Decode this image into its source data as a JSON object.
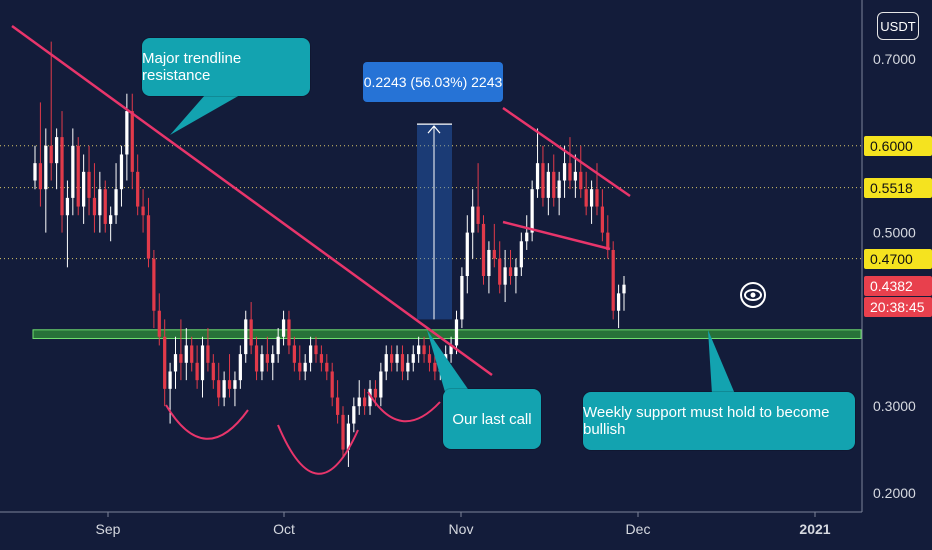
{
  "chart_data": {
    "type": "candlestick",
    "currency": "USDT",
    "y_ticks": [
      "0.7000",
      "0.5000",
      "0.3000",
      "0.2000"
    ],
    "x_ticks": [
      "Sep",
      "Oct",
      "Nov",
      "Dec",
      "2021"
    ],
    "ylim": [
      0.18,
      0.75
    ],
    "price_labels": [
      {
        "text": "0.6000",
        "value": 0.6,
        "style": "yellow"
      },
      {
        "text": "0.5518",
        "value": 0.5518,
        "style": "yellow"
      },
      {
        "text": "0.4700",
        "value": 0.47,
        "style": "yellow"
      },
      {
        "text": "0.4382",
        "value": 0.4382,
        "style": "red"
      }
    ],
    "countdown": "20:38:45",
    "support_zone": [
      0.378,
      0.388
    ],
    "measure": {
      "label": "0.2243 (56.03%) 2243",
      "from": 0.4,
      "to": 0.625
    },
    "annotations": {
      "resistance_label": "Major trendline resistance",
      "last_call_label": "Our last call",
      "support_label": "Weekly support must hold to become bullish"
    },
    "candles": [
      [
        0.56,
        0.6,
        0.55,
        0.58
      ],
      [
        0.58,
        0.65,
        0.53,
        0.55
      ],
      [
        0.55,
        0.62,
        0.5,
        0.6
      ],
      [
        0.6,
        0.72,
        0.56,
        0.58
      ],
      [
        0.58,
        0.62,
        0.55,
        0.61
      ],
      [
        0.61,
        0.64,
        0.5,
        0.52
      ],
      [
        0.52,
        0.56,
        0.46,
        0.54
      ],
      [
        0.54,
        0.62,
        0.52,
        0.6
      ],
      [
        0.6,
        0.61,
        0.52,
        0.53
      ],
      [
        0.53,
        0.59,
        0.51,
        0.57
      ],
      [
        0.57,
        0.6,
        0.52,
        0.54
      ],
      [
        0.54,
        0.58,
        0.5,
        0.52
      ],
      [
        0.52,
        0.57,
        0.5,
        0.55
      ],
      [
        0.55,
        0.56,
        0.5,
        0.51
      ],
      [
        0.51,
        0.53,
        0.49,
        0.52
      ],
      [
        0.52,
        0.58,
        0.51,
        0.55
      ],
      [
        0.55,
        0.6,
        0.53,
        0.59
      ],
      [
        0.59,
        0.66,
        0.56,
        0.64
      ],
      [
        0.64,
        0.66,
        0.55,
        0.57
      ],
      [
        0.57,
        0.59,
        0.52,
        0.53
      ],
      [
        0.53,
        0.55,
        0.5,
        0.52
      ],
      [
        0.52,
        0.54,
        0.46,
        0.47
      ],
      [
        0.47,
        0.48,
        0.39,
        0.41
      ],
      [
        0.41,
        0.43,
        0.37,
        0.38
      ],
      [
        0.38,
        0.4,
        0.3,
        0.32
      ],
      [
        0.32,
        0.35,
        0.28,
        0.34
      ],
      [
        0.34,
        0.38,
        0.32,
        0.36
      ],
      [
        0.36,
        0.4,
        0.33,
        0.35
      ],
      [
        0.35,
        0.39,
        0.33,
        0.37
      ],
      [
        0.37,
        0.38,
        0.34,
        0.35
      ],
      [
        0.35,
        0.37,
        0.32,
        0.33
      ],
      [
        0.33,
        0.38,
        0.31,
        0.37
      ],
      [
        0.37,
        0.39,
        0.34,
        0.35
      ],
      [
        0.35,
        0.36,
        0.32,
        0.33
      ],
      [
        0.33,
        0.35,
        0.3,
        0.31
      ],
      [
        0.31,
        0.34,
        0.3,
        0.33
      ],
      [
        0.33,
        0.36,
        0.31,
        0.32
      ],
      [
        0.32,
        0.34,
        0.3,
        0.33
      ],
      [
        0.33,
        0.37,
        0.32,
        0.36
      ],
      [
        0.36,
        0.41,
        0.35,
        0.4
      ],
      [
        0.4,
        0.42,
        0.36,
        0.37
      ],
      [
        0.37,
        0.38,
        0.33,
        0.34
      ],
      [
        0.34,
        0.37,
        0.33,
        0.36
      ],
      [
        0.36,
        0.38,
        0.34,
        0.35
      ],
      [
        0.35,
        0.37,
        0.33,
        0.36
      ],
      [
        0.36,
        0.39,
        0.35,
        0.38
      ],
      [
        0.38,
        0.41,
        0.37,
        0.4
      ],
      [
        0.4,
        0.41,
        0.36,
        0.37
      ],
      [
        0.37,
        0.38,
        0.34,
        0.35
      ],
      [
        0.35,
        0.37,
        0.33,
        0.34
      ],
      [
        0.34,
        0.36,
        0.33,
        0.35
      ],
      [
        0.35,
        0.38,
        0.34,
        0.37
      ],
      [
        0.37,
        0.38,
        0.35,
        0.36
      ],
      [
        0.36,
        0.37,
        0.34,
        0.35
      ],
      [
        0.35,
        0.36,
        0.33,
        0.34
      ],
      [
        0.34,
        0.35,
        0.3,
        0.31
      ],
      [
        0.31,
        0.33,
        0.28,
        0.29
      ],
      [
        0.29,
        0.3,
        0.24,
        0.25
      ],
      [
        0.25,
        0.29,
        0.23,
        0.28
      ],
      [
        0.28,
        0.31,
        0.27,
        0.3
      ],
      [
        0.3,
        0.33,
        0.29,
        0.31
      ],
      [
        0.31,
        0.32,
        0.29,
        0.3
      ],
      [
        0.3,
        0.33,
        0.29,
        0.32
      ],
      [
        0.32,
        0.33,
        0.3,
        0.31
      ],
      [
        0.31,
        0.35,
        0.3,
        0.34
      ],
      [
        0.34,
        0.37,
        0.33,
        0.36
      ],
      [
        0.36,
        0.37,
        0.34,
        0.35
      ],
      [
        0.35,
        0.37,
        0.34,
        0.36
      ],
      [
        0.36,
        0.37,
        0.33,
        0.34
      ],
      [
        0.34,
        0.36,
        0.33,
        0.35
      ],
      [
        0.35,
        0.37,
        0.34,
        0.36
      ],
      [
        0.36,
        0.38,
        0.35,
        0.37
      ],
      [
        0.37,
        0.38,
        0.35,
        0.36
      ],
      [
        0.36,
        0.37,
        0.34,
        0.35
      ],
      [
        0.35,
        0.36,
        0.33,
        0.34
      ],
      [
        0.34,
        0.36,
        0.33,
        0.35
      ],
      [
        0.35,
        0.37,
        0.34,
        0.36
      ],
      [
        0.36,
        0.38,
        0.35,
        0.37
      ],
      [
        0.37,
        0.41,
        0.36,
        0.4
      ],
      [
        0.4,
        0.46,
        0.39,
        0.45
      ],
      [
        0.45,
        0.52,
        0.43,
        0.5
      ],
      [
        0.5,
        0.55,
        0.47,
        0.53
      ],
      [
        0.53,
        0.58,
        0.5,
        0.51
      ],
      [
        0.51,
        0.52,
        0.44,
        0.45
      ],
      [
        0.45,
        0.49,
        0.43,
        0.48
      ],
      [
        0.48,
        0.51,
        0.46,
        0.47
      ],
      [
        0.47,
        0.49,
        0.43,
        0.44
      ],
      [
        0.44,
        0.48,
        0.42,
        0.46
      ],
      [
        0.46,
        0.48,
        0.44,
        0.45
      ],
      [
        0.45,
        0.47,
        0.43,
        0.46
      ],
      [
        0.46,
        0.5,
        0.45,
        0.49
      ],
      [
        0.49,
        0.52,
        0.48,
        0.5
      ],
      [
        0.5,
        0.56,
        0.49,
        0.55
      ],
      [
        0.55,
        0.62,
        0.54,
        0.58
      ],
      [
        0.58,
        0.6,
        0.53,
        0.54
      ],
      [
        0.54,
        0.58,
        0.52,
        0.57
      ],
      [
        0.57,
        0.59,
        0.53,
        0.54
      ],
      [
        0.54,
        0.57,
        0.52,
        0.56
      ],
      [
        0.56,
        0.6,
        0.54,
        0.58
      ],
      [
        0.58,
        0.61,
        0.55,
        0.56
      ],
      [
        0.56,
        0.59,
        0.54,
        0.57
      ],
      [
        0.57,
        0.6,
        0.54,
        0.55
      ],
      [
        0.55,
        0.57,
        0.52,
        0.53
      ],
      [
        0.53,
        0.56,
        0.51,
        0.55
      ],
      [
        0.55,
        0.58,
        0.52,
        0.53
      ],
      [
        0.53,
        0.55,
        0.49,
        0.5
      ],
      [
        0.5,
        0.52,
        0.47,
        0.48
      ],
      [
        0.48,
        0.49,
        0.4,
        0.41
      ],
      [
        0.41,
        0.44,
        0.39,
        0.43
      ],
      [
        0.43,
        0.45,
        0.41,
        0.44
      ]
    ]
  }
}
